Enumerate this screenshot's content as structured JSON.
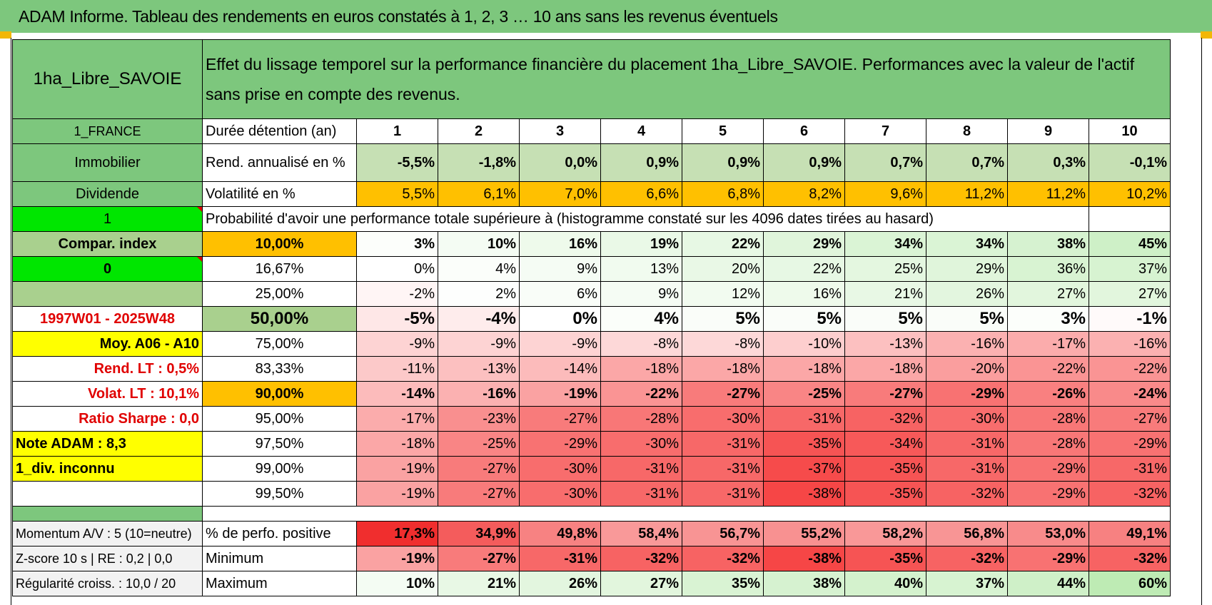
{
  "title": "ADAM Informe. Tableau des rendements en euros constatés à 1, 2, 3 … 10 ans sans les revenus éventuels",
  "header": {
    "asset_name": "1ha_Libre_SAVOIE",
    "description": "Effet du lissage temporel sur la performance financière du placement 1ha_Libre_SAVOIE. Performances avec la valeur de l'actif sans prise en compte des revenus."
  },
  "side": {
    "country": "1_FRANCE",
    "category": "Immobilier",
    "dividend": "Dividende",
    "selector1": "1",
    "compar_index": "Compar. index",
    "selector0": "0",
    "period": "1997W01 - 2025W48",
    "moy": "Moy. A06 - A10",
    "rend_lt": "Rend. LT :    0,5%",
    "volat_lt": "Volat. LT :    10,1%",
    "sharpe": "Ratio Sharpe :    0,0",
    "note": "Note ADAM : 8,3",
    "div": "1_div. inconnu",
    "momentum": "Momentum A/V : 5 (10=neutre)",
    "zscore": "Z-score 10 s | RE : 0,2 | 0,0",
    "regularite": "Régularité croiss. : 10,0 / 20"
  },
  "labels": {
    "duree": "Durée détention (an)",
    "rend": "Rend. annualisé en %",
    "volat": "Volatilité en %",
    "proba": "Probabilité d'avoir une performance totale supérieure à (histogramme constaté sur les 4096 dates tirées au hasard)",
    "pos": "% de perfo. positive",
    "min": "Minimum",
    "max": "Maximum"
  },
  "years": [
    "1",
    "2",
    "3",
    "4",
    "5",
    "6",
    "7",
    "8",
    "9",
    "10"
  ],
  "rend": [
    "-5,5%",
    "-1,8%",
    "0,0%",
    "0,9%",
    "0,9%",
    "0,9%",
    "0,7%",
    "0,7%",
    "0,3%",
    "-0,1%"
  ],
  "volat": [
    "5,5%",
    "6,1%",
    "7,0%",
    "6,6%",
    "6,8%",
    "8,2%",
    "9,6%",
    "11,2%",
    "11,2%",
    "10,2%"
  ],
  "quantiles": [
    {
      "q": "10,00%",
      "v": [
        "3%",
        "10%",
        "16%",
        "19%",
        "22%",
        "29%",
        "34%",
        "34%",
        "38%",
        "45%"
      ]
    },
    {
      "q": "16,67%",
      "v": [
        "0%",
        "4%",
        "9%",
        "13%",
        "20%",
        "22%",
        "25%",
        "29%",
        "36%",
        "37%"
      ]
    },
    {
      "q": "25,00%",
      "v": [
        "-2%",
        "2%",
        "6%",
        "9%",
        "12%",
        "16%",
        "21%",
        "26%",
        "27%",
        "27%"
      ]
    },
    {
      "q": "50,00%",
      "v": [
        "-5%",
        "-4%",
        "0%",
        "4%",
        "5%",
        "5%",
        "5%",
        "5%",
        "3%",
        "-1%"
      ]
    },
    {
      "q": "75,00%",
      "v": [
        "-9%",
        "-9%",
        "-9%",
        "-8%",
        "-8%",
        "-10%",
        "-13%",
        "-16%",
        "-17%",
        "-16%"
      ]
    },
    {
      "q": "83,33%",
      "v": [
        "-11%",
        "-13%",
        "-14%",
        "-18%",
        "-18%",
        "-18%",
        "-18%",
        "-20%",
        "-22%",
        "-22%"
      ]
    },
    {
      "q": "90,00%",
      "v": [
        "-14%",
        "-16%",
        "-19%",
        "-22%",
        "-27%",
        "-25%",
        "-27%",
        "-29%",
        "-26%",
        "-24%"
      ]
    },
    {
      "q": "95,00%",
      "v": [
        "-17%",
        "-23%",
        "-27%",
        "-28%",
        "-30%",
        "-31%",
        "-32%",
        "-30%",
        "-28%",
        "-27%"
      ]
    },
    {
      "q": "97,50%",
      "v": [
        "-18%",
        "-25%",
        "-29%",
        "-30%",
        "-31%",
        "-35%",
        "-34%",
        "-31%",
        "-28%",
        "-29%"
      ]
    },
    {
      "q": "99,00%",
      "v": [
        "-19%",
        "-27%",
        "-30%",
        "-31%",
        "-31%",
        "-37%",
        "-35%",
        "-31%",
        "-29%",
        "-31%"
      ]
    },
    {
      "q": "99,50%",
      "v": [
        "-19%",
        "-27%",
        "-30%",
        "-31%",
        "-31%",
        "-38%",
        "-35%",
        "-32%",
        "-29%",
        "-32%"
      ]
    }
  ],
  "pos": [
    "17,3%",
    "34,9%",
    "49,8%",
    "58,4%",
    "56,7%",
    "55,2%",
    "58,2%",
    "56,8%",
    "53,0%",
    "49,1%"
  ],
  "min": [
    "-19%",
    "-27%",
    "-31%",
    "-32%",
    "-32%",
    "-38%",
    "-35%",
    "-32%",
    "-29%",
    "-32%"
  ],
  "max": [
    "10%",
    "21%",
    "26%",
    "27%",
    "35%",
    "38%",
    "40%",
    "37%",
    "44%",
    "60%"
  ],
  "colors": {
    "header_green": "#7dc77d",
    "bright_green": "#00e600",
    "orange": "#ffc000",
    "yellow": "#ffff00",
    "text_red": "#e00000"
  }
}
